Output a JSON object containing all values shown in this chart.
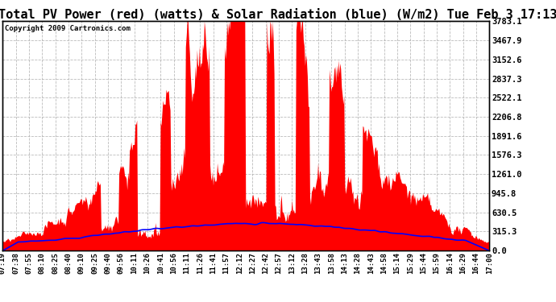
{
  "title": "Total PV Power (red) (watts) & Solar Radiation (blue) (W/m2) Tue Feb 3 17:13",
  "copyright": "Copyright 2009 Cartronics.com",
  "yticks": [
    0.0,
    315.3,
    630.5,
    945.8,
    1261.0,
    1576.3,
    1891.6,
    2206.8,
    2522.1,
    2837.3,
    3152.6,
    3467.9,
    3783.1
  ],
  "ytick_labels": [
    "0.0",
    "315.3",
    "630.5",
    "945.8",
    "1261.0",
    "1576.3",
    "1891.6",
    "2206.8",
    "2522.1",
    "2837.3",
    "3152.6",
    "3467.9",
    "3783.1"
  ],
  "ymax": 3783.1,
  "plot_bg_color": "#ffffff",
  "fig_bg_color": "#ffffff",
  "red_color": "#ff0000",
  "blue_color": "#0000ff",
  "grid_color": "#aaaaaa",
  "title_fontsize": 11,
  "x_labels": [
    "07:19",
    "07:38",
    "07:55",
    "08:10",
    "08:25",
    "08:40",
    "09:10",
    "09:25",
    "09:40",
    "09:56",
    "10:11",
    "10:26",
    "10:41",
    "10:56",
    "11:11",
    "11:26",
    "11:41",
    "11:57",
    "12:12",
    "12:27",
    "12:42",
    "12:57",
    "13:12",
    "13:28",
    "13:43",
    "13:58",
    "14:13",
    "14:28",
    "14:43",
    "14:58",
    "15:14",
    "15:29",
    "15:44",
    "15:59",
    "16:14",
    "16:29",
    "16:44",
    "17:00"
  ],
  "n_points": 600,
  "solar_max": 500,
  "pv_max": 3783.1
}
